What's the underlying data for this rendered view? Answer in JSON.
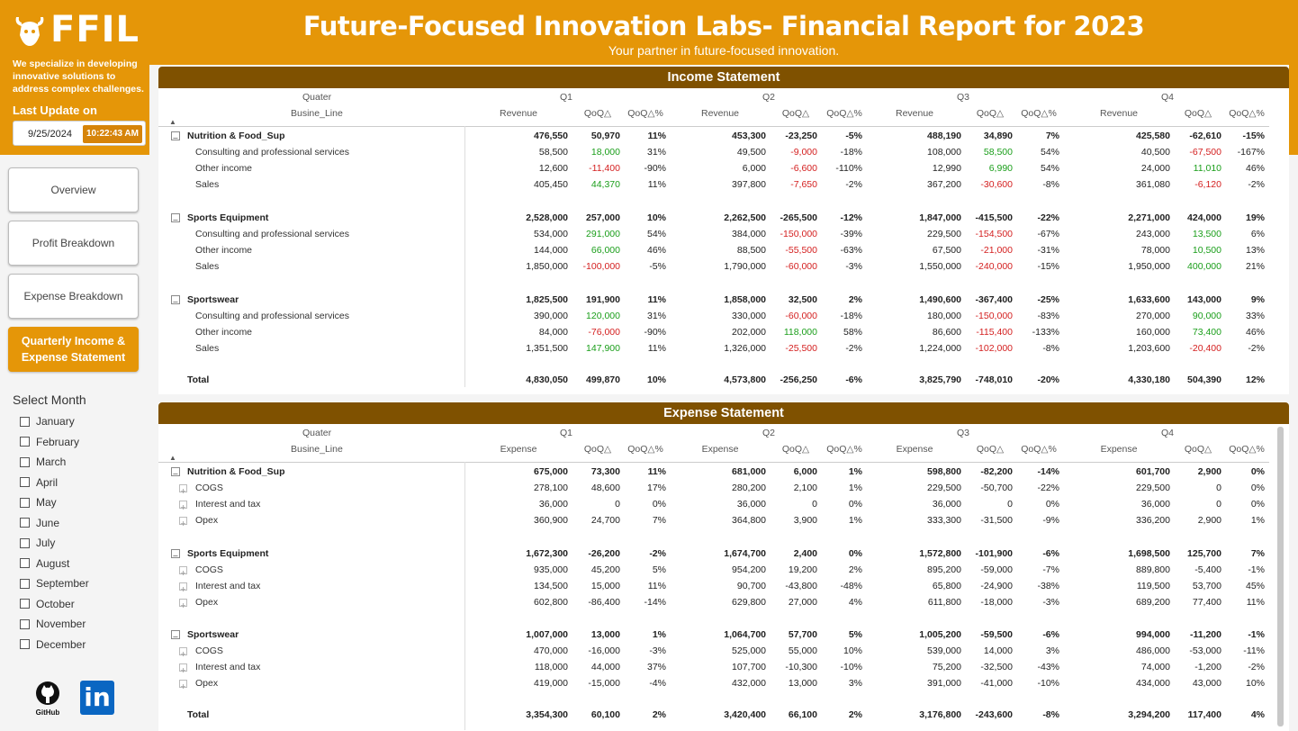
{
  "brand": {
    "logo_text": "FFIL",
    "tagline": "We specialize in developing innovative solutions to address complex challenges.",
    "last_update_label": "Last Update on",
    "date": "9/25/2024",
    "time": "10:22:43 AM"
  },
  "header": {
    "title": "Future-Focused Innovation Labs- Financial Report for 2023",
    "subtitle": "Your partner in future-focused innovation."
  },
  "nav": [
    "Overview",
    "Profit Breakdown",
    "Expense Breakdown",
    "Quarterly Income & Expense Statement"
  ],
  "select_month": {
    "title": "Select Month",
    "months": [
      "January",
      "February",
      "March",
      "April",
      "May",
      "June",
      "July",
      "August",
      "September",
      "October",
      "November",
      "December"
    ]
  },
  "social": {
    "github": "GitHub",
    "linkedin": "in"
  },
  "colors": {
    "accent": "#e59608",
    "header_bar": "#7f5100",
    "positive": "#1a9e1a",
    "negative": "#d42020"
  },
  "income": {
    "title": "Income Statement",
    "row_header_1": "Quater",
    "row_header_2": "Busine_Line",
    "quarters": [
      "Q1",
      "Q2",
      "Q3",
      "Q4"
    ],
    "metrics": [
      "Revenue",
      "QoQ△",
      "QoQ△%"
    ],
    "groups": [
      {
        "name": "Nutrition & Food_Sup",
        "values": [
          "476,550",
          "50,970",
          "11%",
          "453,300",
          "-23,250",
          "-5%",
          "488,190",
          "34,890",
          "7%",
          "425,580",
          "-62,610",
          "-15%"
        ],
        "rows": [
          {
            "name": "Consulting and professional services",
            "values": [
              "58,500",
              "18,000",
              "31%",
              "49,500",
              "-9,000",
              "-18%",
              "108,000",
              "58,500",
              "54%",
              "40,500",
              "-67,500",
              "-167%"
            ]
          },
          {
            "name": "Other income",
            "values": [
              "12,600",
              "-11,400",
              "-90%",
              "6,000",
              "-6,600",
              "-110%",
              "12,990",
              "6,990",
              "54%",
              "24,000",
              "11,010",
              "46%"
            ]
          },
          {
            "name": "Sales",
            "values": [
              "405,450",
              "44,370",
              "11%",
              "397,800",
              "-7,650",
              "-2%",
              "367,200",
              "-30,600",
              "-8%",
              "361,080",
              "-6,120",
              "-2%"
            ]
          }
        ]
      },
      {
        "name": "Sports Equipment",
        "values": [
          "2,528,000",
          "257,000",
          "10%",
          "2,262,500",
          "-265,500",
          "-12%",
          "1,847,000",
          "-415,500",
          "-22%",
          "2,271,000",
          "424,000",
          "19%"
        ],
        "rows": [
          {
            "name": "Consulting and professional services",
            "values": [
              "534,000",
              "291,000",
              "54%",
              "384,000",
              "-150,000",
              "-39%",
              "229,500",
              "-154,500",
              "-67%",
              "243,000",
              "13,500",
              "6%"
            ]
          },
          {
            "name": "Other income",
            "values": [
              "144,000",
              "66,000",
              "46%",
              "88,500",
              "-55,500",
              "-63%",
              "67,500",
              "-21,000",
              "-31%",
              "78,000",
              "10,500",
              "13%"
            ]
          },
          {
            "name": "Sales",
            "values": [
              "1,850,000",
              "-100,000",
              "-5%",
              "1,790,000",
              "-60,000",
              "-3%",
              "1,550,000",
              "-240,000",
              "-15%",
              "1,950,000",
              "400,000",
              "21%"
            ]
          }
        ]
      },
      {
        "name": "Sportswear",
        "values": [
          "1,825,500",
          "191,900",
          "11%",
          "1,858,000",
          "32,500",
          "2%",
          "1,490,600",
          "-367,400",
          "-25%",
          "1,633,600",
          "143,000",
          "9%"
        ],
        "rows": [
          {
            "name": "Consulting and professional services",
            "values": [
              "390,000",
              "120,000",
              "31%",
              "330,000",
              "-60,000",
              "-18%",
              "180,000",
              "-150,000",
              "-83%",
              "270,000",
              "90,000",
              "33%"
            ]
          },
          {
            "name": "Other income",
            "values": [
              "84,000",
              "-76,000",
              "-90%",
              "202,000",
              "118,000",
              "58%",
              "86,600",
              "-115,400",
              "-133%",
              "160,000",
              "73,400",
              "46%"
            ]
          },
          {
            "name": "Sales",
            "values": [
              "1,351,500",
              "147,900",
              "11%",
              "1,326,000",
              "-25,500",
              "-2%",
              "1,224,000",
              "-102,000",
              "-8%",
              "1,203,600",
              "-20,400",
              "-2%"
            ]
          }
        ]
      }
    ],
    "total": {
      "name": "Total",
      "values": [
        "4,830,050",
        "499,870",
        "10%",
        "4,573,800",
        "-256,250",
        "-6%",
        "3,825,790",
        "-748,010",
        "-20%",
        "4,330,180",
        "504,390",
        "12%"
      ]
    }
  },
  "expense": {
    "title": "Expense Statement",
    "row_header_1": "Quater",
    "row_header_2": "Busine_Line",
    "quarters": [
      "Q1",
      "Q2",
      "Q3",
      "Q4"
    ],
    "metrics": [
      "Expense",
      "QoQ△",
      "QoQ△%"
    ],
    "groups": [
      {
        "name": "Nutrition & Food_Sup",
        "values": [
          "675,000",
          "73,300",
          "11%",
          "681,000",
          "6,000",
          "1%",
          "598,800",
          "-82,200",
          "-14%",
          "601,700",
          "2,900",
          "0%"
        ],
        "rows": [
          {
            "name": "COGS",
            "values": [
              "278,100",
              "48,600",
              "17%",
              "280,200",
              "2,100",
              "1%",
              "229,500",
              "-50,700",
              "-22%",
              "229,500",
              "0",
              "0%"
            ]
          },
          {
            "name": "Interest and tax",
            "values": [
              "36,000",
              "0",
              "0%",
              "36,000",
              "0",
              "0%",
              "36,000",
              "0",
              "0%",
              "36,000",
              "0",
              "0%"
            ]
          },
          {
            "name": "Opex",
            "values": [
              "360,900",
              "24,700",
              "7%",
              "364,800",
              "3,900",
              "1%",
              "333,300",
              "-31,500",
              "-9%",
              "336,200",
              "2,900",
              "1%"
            ]
          }
        ]
      },
      {
        "name": "Sports Equipment",
        "values": [
          "1,672,300",
          "-26,200",
          "-2%",
          "1,674,700",
          "2,400",
          "0%",
          "1,572,800",
          "-101,900",
          "-6%",
          "1,698,500",
          "125,700",
          "7%"
        ],
        "rows": [
          {
            "name": "COGS",
            "values": [
              "935,000",
              "45,200",
              "5%",
              "954,200",
              "19,200",
              "2%",
              "895,200",
              "-59,000",
              "-7%",
              "889,800",
              "-5,400",
              "-1%"
            ]
          },
          {
            "name": "Interest and tax",
            "values": [
              "134,500",
              "15,000",
              "11%",
              "90,700",
              "-43,800",
              "-48%",
              "65,800",
              "-24,900",
              "-38%",
              "119,500",
              "53,700",
              "45%"
            ]
          },
          {
            "name": "Opex",
            "values": [
              "602,800",
              "-86,400",
              "-14%",
              "629,800",
              "27,000",
              "4%",
              "611,800",
              "-18,000",
              "-3%",
              "689,200",
              "77,400",
              "11%"
            ]
          }
        ]
      },
      {
        "name": "Sportswear",
        "values": [
          "1,007,000",
          "13,000",
          "1%",
          "1,064,700",
          "57,700",
          "5%",
          "1,005,200",
          "-59,500",
          "-6%",
          "994,000",
          "-11,200",
          "-1%"
        ],
        "rows": [
          {
            "name": "COGS",
            "values": [
              "470,000",
              "-16,000",
              "-3%",
              "525,000",
              "55,000",
              "10%",
              "539,000",
              "14,000",
              "3%",
              "486,000",
              "-53,000",
              "-11%"
            ]
          },
          {
            "name": "Interest and tax",
            "values": [
              "118,000",
              "44,000",
              "37%",
              "107,700",
              "-10,300",
              "-10%",
              "75,200",
              "-32,500",
              "-43%",
              "74,000",
              "-1,200",
              "-2%"
            ]
          },
          {
            "name": "Opex",
            "values": [
              "419,000",
              "-15,000",
              "-4%",
              "432,000",
              "13,000",
              "3%",
              "391,000",
              "-41,000",
              "-10%",
              "434,000",
              "43,000",
              "10%"
            ]
          }
        ]
      }
    ],
    "total": {
      "name": "Total",
      "values": [
        "3,354,300",
        "60,100",
        "2%",
        "3,420,400",
        "66,100",
        "2%",
        "3,176,800",
        "-243,600",
        "-8%",
        "3,294,200",
        "117,400",
        "4%"
      ]
    }
  }
}
